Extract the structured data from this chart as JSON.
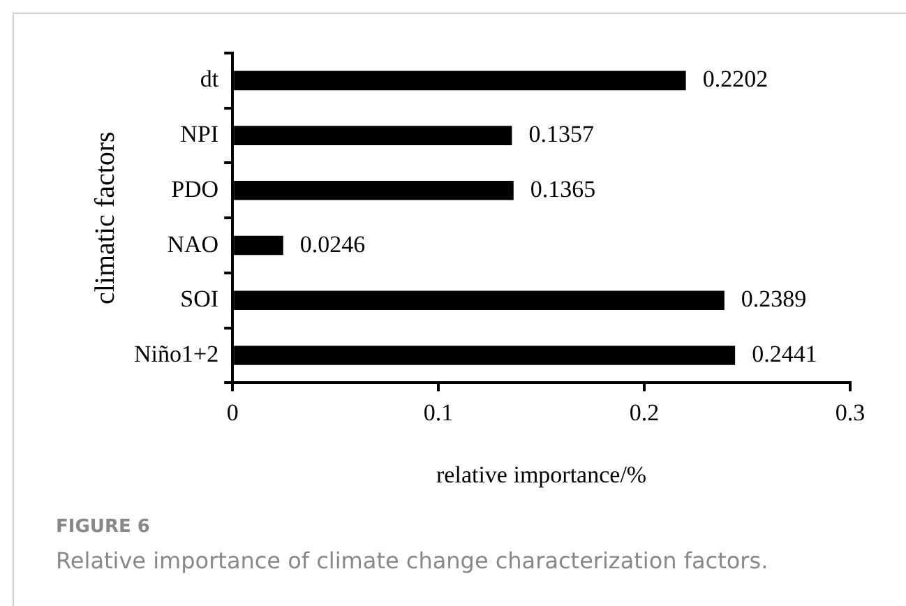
{
  "chart_data": {
    "type": "bar",
    "orientation": "horizontal",
    "categories": [
      "dt",
      "NPI",
      "PDO",
      "NAO",
      "SOI",
      "Niño1+2"
    ],
    "values": [
      0.2202,
      0.1357,
      0.1365,
      0.0246,
      0.2389,
      0.2441
    ],
    "color": "#000000",
    "xlim": [
      0,
      0.3
    ],
    "xticks": [
      0,
      0.1,
      0.2,
      0.3
    ],
    "xlabel": "relative importance/%",
    "ylabel": "climatic factors",
    "data_labels": true,
    "grid": false,
    "legend": false,
    "annotations": [
      "FIGURE 6",
      "Relative importance of climate change characterization factors."
    ]
  }
}
